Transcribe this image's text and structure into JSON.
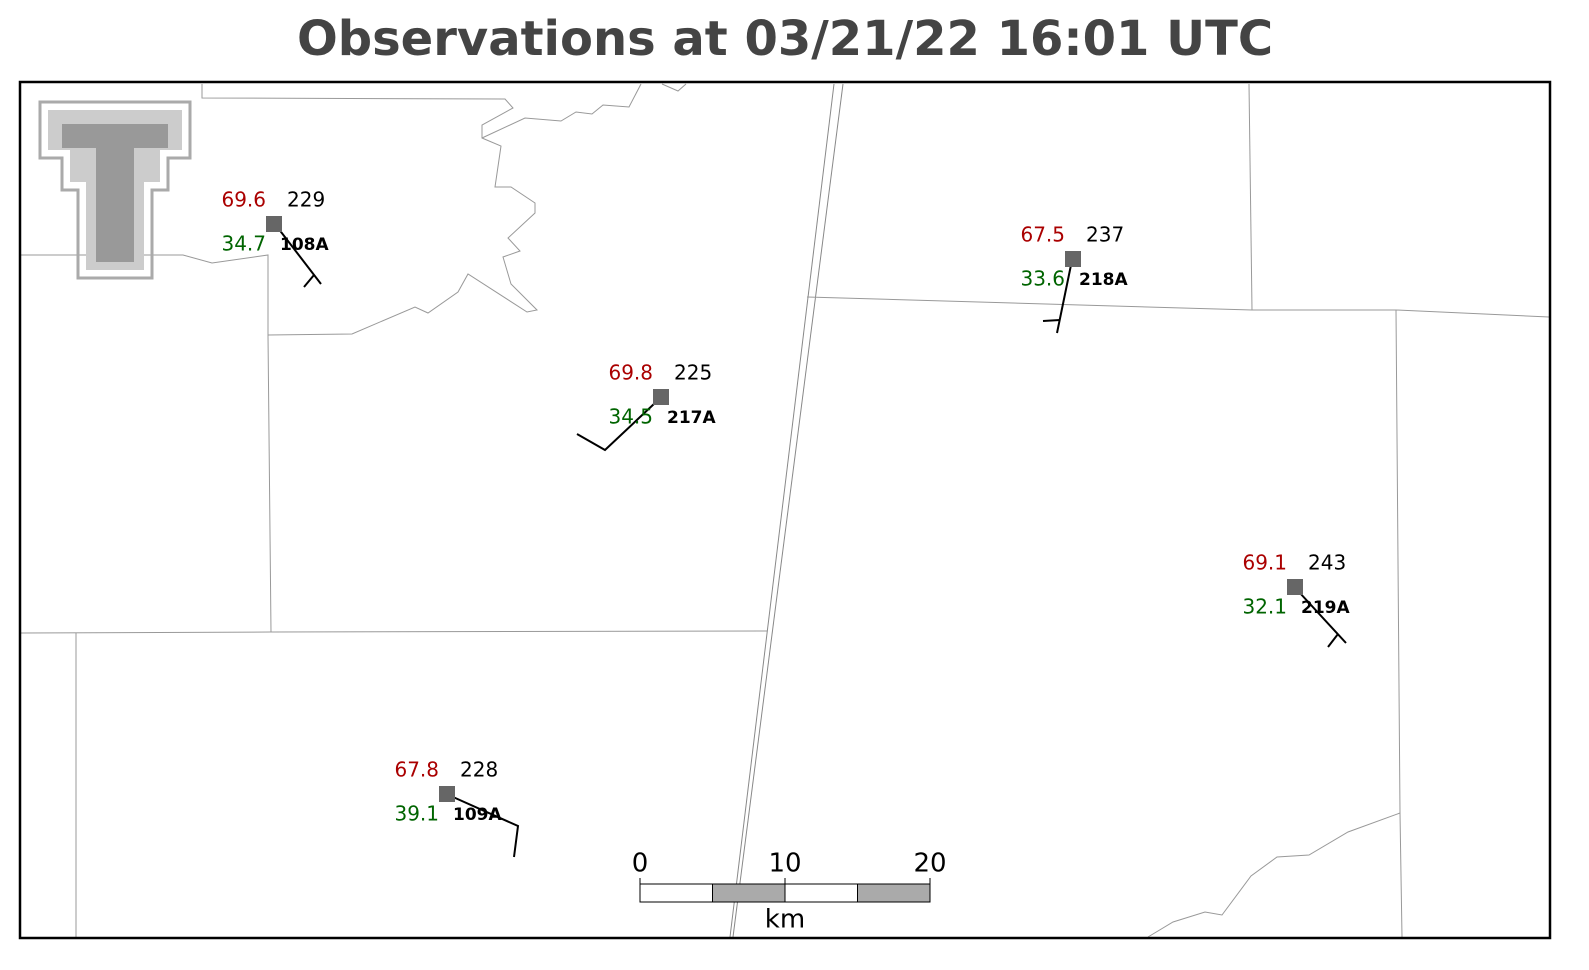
{
  "title": "Observations at 03/21/22 16:01 UTC",
  "stations": [
    {
      "id": "108A",
      "temperature": 69.6,
      "dewpoint": 34.7,
      "pressure": 229
    },
    {
      "id": "217A",
      "temperature": 69.8,
      "dewpoint": 34.5,
      "pressure": 225
    },
    {
      "id": "218A",
      "temperature": 67.5,
      "dewpoint": 33.6,
      "pressure": 237
    },
    {
      "id": "219A",
      "temperature": 69.1,
      "dewpoint": 32.1,
      "pressure": 243
    },
    {
      "id": "109A",
      "temperature": 67.8,
      "dewpoint": 39.1,
      "pressure": 228
    }
  ],
  "scale_bar": {
    "ticks": [
      0,
      10,
      20
    ],
    "unit": "km"
  }
}
